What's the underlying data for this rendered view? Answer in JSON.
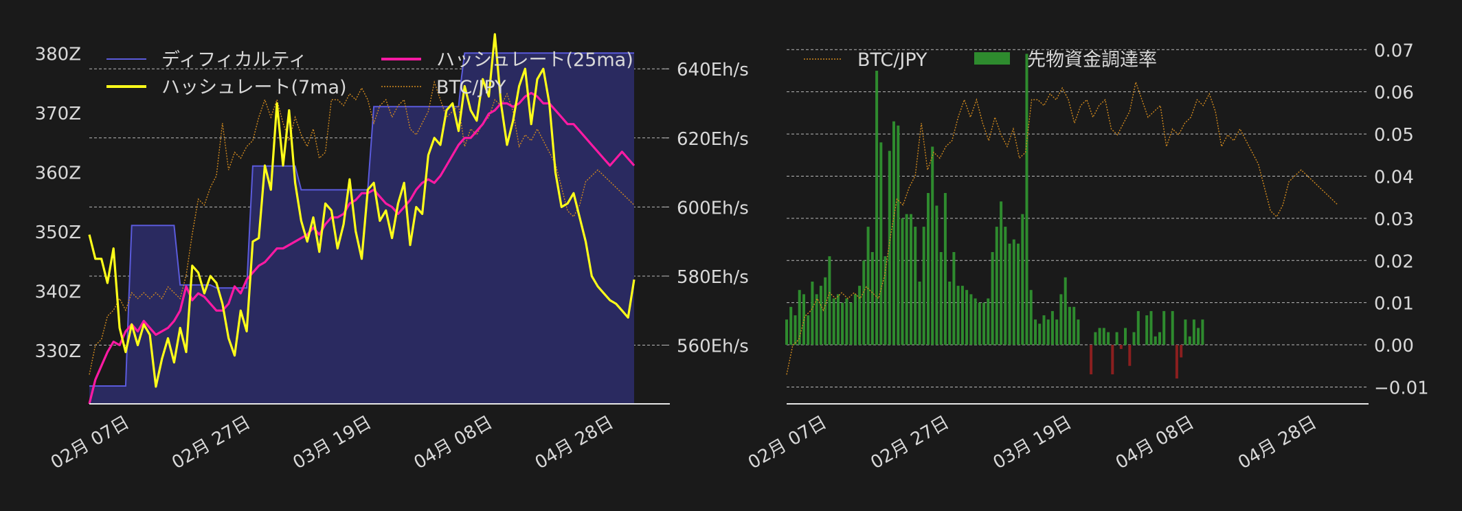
{
  "colors": {
    "background": "#1a1a1a",
    "text": "#d9d9d9",
    "grid": "#bbbbbb",
    "difficulty_line": "#5b5bdc",
    "difficulty_fill": "#2a2a60",
    "hash_7ma": "#ffff1a",
    "hash_25ma": "#ff1aa3",
    "btc_jpy": "#d28a1e",
    "funding_pos": "#2e8b2e",
    "funding_neg": "#8b1f1f"
  },
  "chart_data": [
    {
      "type": "line",
      "name": "left-chart",
      "x_tick_labels": [
        "02月 07日",
        "02月 27日",
        "03月 19日",
        "04月 08日",
        "04月 28日"
      ],
      "x_tick_days": [
        6,
        26,
        46,
        66,
        86
      ],
      "x_day_range": [
        6,
        96
      ],
      "ylim_left": [
        321,
        382
      ],
      "ylim_right": [
        543,
        648
      ],
      "left_ticks": [
        330,
        340,
        350,
        360,
        370,
        380
      ],
      "left_tick_labels": [
        "330Z",
        "340Z",
        "350Z",
        "360Z",
        "370Z",
        "380Z"
      ],
      "right_ticks": [
        560,
        580,
        600,
        620,
        640
      ],
      "right_tick_labels": [
        "560Eh/s",
        "580Eh/s",
        "600Eh/s",
        "620Eh/s",
        "640Eh/s"
      ],
      "legend": {
        "placement": "top",
        "items": [
          {
            "key": "difficulty",
            "label": "ディフィカルティ"
          },
          {
            "key": "hash_25ma",
            "label": "ハッシュレート(25ma)"
          },
          {
            "key": "hash_7ma",
            "label": "ハッシュレート(7ma)"
          },
          {
            "key": "btc",
            "label": "BTC/JPY"
          }
        ]
      },
      "difficulty": {
        "days": [
          6,
          12,
          12.5,
          13,
          20,
          20.5,
          21,
          26,
          27,
          32,
          32.5,
          33,
          40,
          40.5,
          41,
          52,
          52.5,
          53,
          59,
          59.5,
          60,
          67,
          67.5,
          68,
          75,
          75.5,
          76,
          84,
          84.5,
          85,
          96
        ],
        "values": [
          324,
          324,
          338,
          351,
          351,
          346,
          341,
          341,
          340.5,
          340.5,
          351,
          361,
          361,
          359,
          357,
          357,
          364,
          371,
          371,
          371,
          371,
          371,
          376,
          380,
          380,
          380,
          380,
          380,
          380,
          380,
          380
        ]
      },
      "hash_7ma": {
        "days": [
          6,
          7,
          8,
          9,
          10,
          11,
          12,
          13,
          14,
          15,
          16,
          17,
          18,
          19,
          20,
          21,
          22,
          23,
          24,
          25,
          26,
          27,
          28,
          29,
          30,
          31,
          32,
          33,
          34,
          35,
          36,
          37,
          38,
          39,
          40,
          41,
          42,
          43,
          44,
          45,
          46,
          47,
          48,
          49,
          50,
          51,
          52,
          53,
          54,
          55,
          56,
          57,
          58,
          59,
          60,
          61,
          62,
          63,
          64,
          65,
          66,
          67,
          68,
          69,
          70,
          71,
          72,
          73,
          74,
          75,
          76,
          77,
          78,
          79,
          80,
          81,
          82,
          83,
          84,
          85,
          86,
          87,
          88,
          89,
          90,
          91,
          92,
          93,
          94,
          95,
          96
        ],
        "values": [
          592,
          585,
          585,
          578,
          588,
          565,
          558,
          566,
          560,
          566,
          563,
          548,
          556,
          562,
          555,
          565,
          558,
          583,
          581,
          575,
          580,
          578,
          572,
          562,
          557,
          570,
          564,
          590,
          591,
          612,
          605,
          630,
          612,
          628,
          607,
          596,
          590,
          597,
          587,
          601,
          599,
          588,
          595,
          608,
          593,
          585,
          605,
          607,
          596,
          599,
          591,
          601,
          607,
          589,
          600,
          598,
          615,
          620,
          618,
          628,
          630,
          622,
          635,
          628,
          625,
          637,
          632,
          650,
          630,
          618,
          625,
          635,
          640,
          624,
          637,
          640,
          630,
          610,
          600,
          601,
          604,
          597,
          590,
          580,
          577,
          575,
          573,
          572,
          570,
          568,
          579
        ]
      },
      "hash_25ma": {
        "days": [
          6,
          7,
          8,
          9,
          10,
          11,
          12,
          13,
          14,
          15,
          16,
          17,
          18,
          19,
          20,
          21,
          22,
          23,
          24,
          25,
          26,
          27,
          28,
          29,
          30,
          31,
          32,
          33,
          34,
          35,
          36,
          37,
          38,
          39,
          40,
          41,
          42,
          43,
          44,
          45,
          46,
          47,
          48,
          49,
          50,
          51,
          52,
          53,
          54,
          55,
          56,
          57,
          58,
          59,
          60,
          61,
          62,
          63,
          64,
          65,
          66,
          67,
          68,
          69,
          70,
          71,
          72,
          73,
          74,
          75,
          76,
          77,
          78,
          79,
          80,
          81,
          82,
          83,
          84,
          85,
          86,
          87,
          88,
          89,
          90,
          91,
          92,
          93,
          94,
          95,
          96
        ],
        "values": [
          543,
          550,
          554,
          558,
          561,
          560,
          564,
          566,
          564,
          567,
          565,
          563,
          564,
          565,
          567,
          570,
          577,
          573,
          575,
          574,
          572,
          570,
          570,
          572,
          577,
          575,
          579,
          581,
          583,
          584,
          586,
          588,
          588,
          589,
          590,
          591,
          592,
          594,
          592,
          595,
          597,
          597,
          598,
          601,
          602,
          604,
          604,
          605,
          603,
          601,
          600,
          598,
          600,
          602,
          605,
          607,
          608,
          607,
          609,
          612,
          615,
          618,
          620,
          620,
          622,
          624,
          627,
          628,
          630,
          630,
          629,
          630,
          632,
          633,
          632,
          630,
          630,
          628,
          626,
          624,
          624,
          622,
          620,
          618,
          616,
          614,
          612,
          614,
          616,
          614,
          612
        ]
      },
      "btc_days": [
        6,
        7,
        8,
        9,
        10,
        11,
        12,
        13,
        14,
        15,
        16,
        17,
        18,
        19,
        20,
        21,
        22,
        23,
        24,
        25,
        26,
        27,
        28,
        29,
        30,
        31,
        32,
        33,
        34,
        35,
        36,
        37,
        38,
        39,
        40,
        41,
        42,
        43,
        44,
        45,
        46,
        47,
        48,
        49,
        50,
        51,
        52,
        53,
        54,
        55,
        56,
        57,
        58,
        59,
        60,
        61,
        62,
        63,
        64,
        65,
        66,
        67,
        68,
        69,
        70,
        71,
        72,
        73,
        74,
        75,
        76,
        77,
        78,
        79,
        80,
        81,
        82,
        83,
        84,
        85,
        86,
        87,
        88,
        89,
        90,
        91,
        92,
        93,
        94,
        95,
        96
      ]
    },
    {
      "type": "bar",
      "name": "right-chart",
      "x_tick_labels": [
        "02月 07日",
        "02月 27日",
        "03月 19日",
        "04月 08日",
        "04月 28日"
      ],
      "x_tick_days": [
        6,
        26,
        46,
        66,
        86
      ],
      "x_day_range": [
        6,
        101
      ],
      "ylim": [
        -0.014,
        0.072
      ],
      "y_ticks": [
        -0.01,
        0.0,
        0.01,
        0.02,
        0.03,
        0.04,
        0.05,
        0.06,
        0.07
      ],
      "y_tick_labels": [
        "−0.01",
        "0.00",
        "0.01",
        "0.02",
        "0.03",
        "0.04",
        "0.05",
        "0.06",
        "0.07"
      ],
      "btc_ylim": [
        320,
        382
      ],
      "legend": {
        "placement": "top-left",
        "items": [
          {
            "key": "btc",
            "label": "BTC/JPY"
          },
          {
            "key": "funding",
            "label": "先物資金調達率"
          }
        ]
      },
      "funding_rate": {
        "days": [
          6,
          6.7,
          7.4,
          8.1,
          8.8,
          9.5,
          10.2,
          10.9,
          11.6,
          12.3,
          13,
          13.7,
          14.4,
          15.1,
          15.8,
          16.5,
          17.2,
          17.9,
          18.6,
          19.3,
          20,
          20.7,
          21.4,
          22.1,
          22.8,
          23.5,
          24.2,
          24.9,
          25.6,
          26.3,
          27,
          27.7,
          28.4,
          29.1,
          29.8,
          30.5,
          31.2,
          31.9,
          32.6,
          33.3,
          34,
          34.7,
          35.4,
          36.1,
          36.8,
          37.5,
          38.2,
          38.9,
          39.6,
          40.3,
          41,
          41.7,
          42.4,
          43.1,
          43.8,
          44.5,
          45.2,
          45.9,
          46.6,
          47.3,
          48,
          48.7,
          49.4,
          50.1,
          50.8,
          51.5,
          52.2,
          52.9,
          53.6,
          54.3,
          55,
          55.7,
          56.4,
          57.1,
          57.8,
          58.5,
          59.2,
          59.9,
          60.6,
          61.3,
          62,
          62.7,
          63.4,
          64.1,
          64.8,
          65.5,
          66.2,
          66.9,
          67.6,
          68.3,
          69,
          69.7,
          70.4,
          71.1,
          71.8,
          72.5,
          73.2,
          73.9,
          74.6,
          75.3,
          76,
          76.7,
          77.4,
          78.1,
          78.8,
          79.5,
          80.2,
          80.9,
          81.6,
          82.3,
          83,
          83.7,
          84.4,
          85.1,
          85.8,
          86.5,
          87.2,
          87.9
        ],
        "values": [
          0.006,
          0.009,
          0.007,
          0.013,
          0.012,
          0.007,
          0.015,
          0.012,
          0.014,
          0.016,
          0.021,
          0.011,
          0.012,
          0.01,
          0.011,
          0.01,
          0.012,
          0.014,
          0.02,
          0.028,
          0.022,
          0.065,
          0.048,
          0.021,
          0.046,
          0.053,
          0.052,
          0.03,
          0.031,
          0.031,
          0.028,
          0.015,
          0.028,
          0.036,
          0.047,
          0.033,
          0.022,
          0.036,
          0.015,
          0.022,
          0.014,
          0.014,
          0.013,
          0.012,
          0.011,
          0.01,
          0.01,
          0.011,
          0.022,
          0.028,
          0.034,
          0.028,
          0.024,
          0.025,
          0.024,
          0.031,
          0.069,
          0.013,
          0.006,
          0.005,
          0.007,
          0.006,
          0.008,
          0.006,
          0.012,
          0.016,
          0.009,
          0.009,
          0.006,
          0.0,
          0.0,
          -0.007,
          0.003,
          0.004,
          0.004,
          0.003,
          -0.007,
          0.003,
          -0.001,
          0.004,
          -0.005,
          0.003,
          0.008,
          0.0,
          0.007,
          0.008,
          0.002,
          0.003,
          0.008,
          0.0,
          0.008,
          -0.008,
          -0.003,
          0.006,
          0.002,
          0.006,
          0.004,
          0.006,
          0.0,
          0.0,
          0.0,
          0.0,
          0.0,
          0.0,
          0.0,
          0.0,
          0.0,
          0.0,
          0.0,
          0.0,
          0.0,
          0.0,
          0.0,
          0.0,
          0.0,
          0.0,
          0.0,
          0.0
        ]
      }
    }
  ],
  "btc_jpy": {
    "days": [
      6,
      7,
      8,
      9,
      10,
      11,
      12,
      13,
      14,
      15,
      16,
      17,
      18,
      19,
      20,
      21,
      22,
      23,
      24,
      25,
      26,
      27,
      28,
      29,
      30,
      31,
      32,
      33,
      34,
      35,
      36,
      37,
      38,
      39,
      40,
      41,
      42,
      43,
      44,
      45,
      46,
      47,
      48,
      49,
      50,
      51,
      52,
      53,
      54,
      55,
      56,
      57,
      58,
      59,
      60,
      61,
      62,
      63,
      64,
      65,
      66,
      67,
      68,
      69,
      70,
      71,
      72,
      73,
      74,
      75,
      76,
      77,
      78,
      79,
      80,
      81,
      82,
      83,
      84,
      85,
      86,
      87,
      88,
      89,
      90,
      91,
      92,
      93,
      94,
      95,
      96
    ],
    "values": [
      325,
      330,
      331,
      335,
      336,
      338,
      336,
      339,
      338,
      339,
      338,
      339,
      338,
      340,
      339,
      338,
      342,
      349,
      355,
      354,
      357,
      359,
      368,
      360,
      363,
      362,
      364,
      365,
      369,
      372,
      369,
      372,
      368,
      365,
      369,
      366,
      364,
      367,
      362,
      363,
      372,
      372,
      371,
      373,
      372,
      374,
      372,
      368,
      371,
      372,
      369,
      371,
      372,
      367,
      366,
      368,
      370,
      375,
      372,
      369,
      370,
      371,
      364,
      367,
      366,
      368,
      369,
      372,
      371,
      373,
      370,
      364,
      366,
      365,
      367,
      365,
      363,
      361,
      357,
      353,
      352,
      354,
      358,
      359,
      360,
      359,
      358,
      357,
      356,
      355,
      354
    ]
  }
}
